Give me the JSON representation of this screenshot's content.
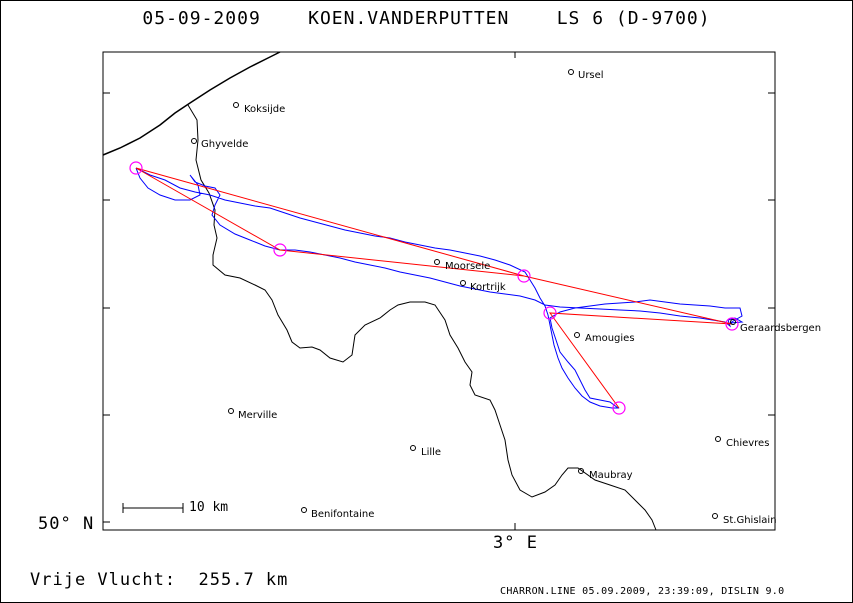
{
  "header": {
    "title": "05-09-2009    KOEN.VANDERPUTTEN    LS 6 (D-9700)"
  },
  "axes": {
    "lat_label": "50° N",
    "lon_label": "3° E"
  },
  "scale": {
    "label": "10 km"
  },
  "towns": [
    {
      "name": "Ursel"
    },
    {
      "name": "Koksijde"
    },
    {
      "name": "Ghyvelde"
    },
    {
      "name": "Moorsele"
    },
    {
      "name": "Kortrijk"
    },
    {
      "name": "Amougies"
    },
    {
      "name": "Geraardsbergen"
    },
    {
      "name": "Merville"
    },
    {
      "name": "Lille"
    },
    {
      "name": "Chievres"
    },
    {
      "name": "Maubray"
    },
    {
      "name": "Benifontaine"
    },
    {
      "name": "St.Ghislain"
    }
  ],
  "footer": {
    "distance_label": "Vrije Vlucht:  255.7 km",
    "credits": "CHARRON.LINE 05.09.2009, 23:39:09, DISLIN 9.0"
  },
  "colors": {
    "task_line": "#ff0000",
    "turnpoint": "#ff00ff",
    "track": "#0000ff",
    "borders": "#000000"
  }
}
